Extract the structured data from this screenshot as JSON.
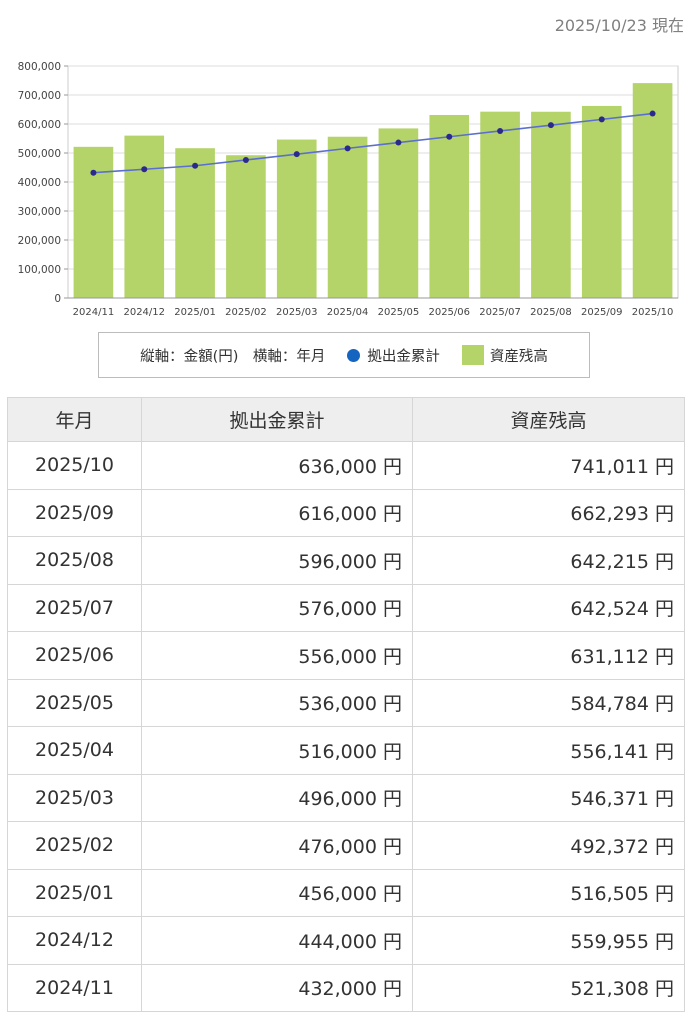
{
  "as_of": "2025/10/23 現在",
  "legend": {
    "axes_note": "縦軸：金額(円)　横軸：年月",
    "line_label": "拠出金累計",
    "bar_label": "資産残高"
  },
  "colors": {
    "bar": "#b4d46a",
    "line": "#5b6fd0",
    "marker": "#2b2a8c",
    "dot": "#1565c0"
  },
  "chart_data": {
    "type": "bar",
    "categories": [
      "2024/11",
      "2024/12",
      "2025/01",
      "2025/02",
      "2025/03",
      "2025/04",
      "2025/05",
      "2025/06",
      "2025/07",
      "2025/08",
      "2025/09",
      "2025/10"
    ],
    "series": [
      {
        "name": "資産残高",
        "type": "bar",
        "values": [
          521308,
          559955,
          516505,
          492372,
          546371,
          556141,
          584784,
          631112,
          642524,
          642215,
          662293,
          741011
        ]
      },
      {
        "name": "拠出金累計",
        "type": "line",
        "values": [
          432000,
          444000,
          456000,
          476000,
          496000,
          516000,
          536000,
          556000,
          576000,
          596000,
          616000,
          636000
        ]
      }
    ],
    "ylim": [
      0,
      800000
    ],
    "yticks": [
      "0",
      "100,000",
      "200,000",
      "300,000",
      "400,000",
      "500,000",
      "600,000",
      "700,000",
      "800,000"
    ],
    "grid": true,
    "legend_position": "bottom"
  },
  "table": {
    "headers": [
      "年月",
      "拠出金累計",
      "資産残高"
    ],
    "rows": [
      [
        "2025/10",
        "636,000 円",
        "741,011 円"
      ],
      [
        "2025/09",
        "616,000 円",
        "662,293 円"
      ],
      [
        "2025/08",
        "596,000 円",
        "642,215 円"
      ],
      [
        "2025/07",
        "576,000 円",
        "642,524 円"
      ],
      [
        "2025/06",
        "556,000 円",
        "631,112 円"
      ],
      [
        "2025/05",
        "536,000 円",
        "584,784 円"
      ],
      [
        "2025/04",
        "516,000 円",
        "556,141 円"
      ],
      [
        "2025/03",
        "496,000 円",
        "546,371 円"
      ],
      [
        "2025/02",
        "476,000 円",
        "492,372 円"
      ],
      [
        "2025/01",
        "456,000 円",
        "516,505 円"
      ],
      [
        "2024/12",
        "444,000 円",
        "559,955 円"
      ],
      [
        "2024/11",
        "432,000 円",
        "521,308 円"
      ]
    ]
  }
}
